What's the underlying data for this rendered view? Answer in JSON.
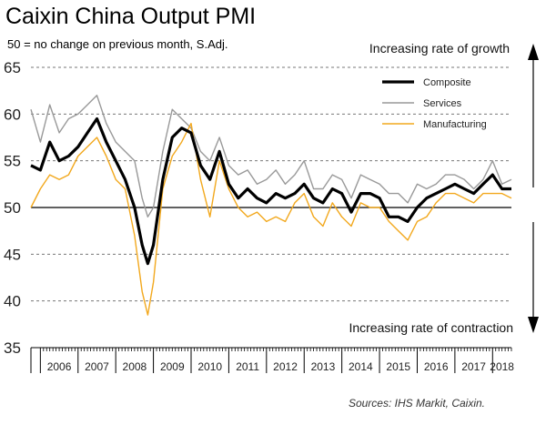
{
  "chart_data": {
    "type": "line",
    "title": "Caixin China Output PMI",
    "subtitle": "50 = no change on previous month, S.Adj.",
    "source": "Sources: IHS Markit, Caixin.",
    "annotation_top": "Increasing rate of growth",
    "annotation_bottom": "Increasing rate of contraction",
    "ylim": [
      35,
      65
    ],
    "yticks": [
      35,
      40,
      45,
      50,
      55,
      60,
      65
    ],
    "xlim": [
      2005.75,
      2018.5
    ],
    "xticks": [
      "2006",
      "2007",
      "2008",
      "2009",
      "2010",
      "2011",
      "2012",
      "2013",
      "2014",
      "2015",
      "2016",
      "2017",
      "2018"
    ],
    "reference_line": 50,
    "grid": "dashed-horizontal",
    "legend_position": "top-right",
    "series": [
      {
        "name": "Composite",
        "color": "#000000",
        "x": [
          2005.75,
          2006.0,
          2006.25,
          2006.5,
          2006.75,
          2007.0,
          2007.25,
          2007.5,
          2007.75,
          2008.0,
          2008.25,
          2008.5,
          2008.7,
          2008.85,
          2009.0,
          2009.25,
          2009.5,
          2009.75,
          2010.0,
          2010.25,
          2010.5,
          2010.75,
          2011.0,
          2011.25,
          2011.5,
          2011.75,
          2012.0,
          2012.25,
          2012.5,
          2012.75,
          2013.0,
          2013.25,
          2013.5,
          2013.75,
          2014.0,
          2014.25,
          2014.5,
          2014.75,
          2015.0,
          2015.25,
          2015.5,
          2015.75,
          2016.0,
          2016.25,
          2016.5,
          2016.75,
          2017.0,
          2017.25,
          2017.5,
          2017.75,
          2018.0,
          2018.25,
          2018.5
        ],
        "values": [
          54.5,
          54.0,
          57.0,
          55.0,
          55.5,
          56.5,
          58.0,
          59.5,
          57.0,
          55.0,
          53.0,
          50.0,
          46.0,
          44.0,
          46.0,
          53.0,
          57.5,
          58.5,
          58.0,
          54.5,
          53.0,
          56.0,
          52.5,
          51.0,
          52.0,
          51.0,
          50.5,
          51.5,
          51.0,
          51.5,
          52.5,
          51.0,
          50.5,
          52.0,
          51.5,
          49.5,
          51.5,
          51.5,
          51.0,
          49.0,
          49.0,
          48.5,
          50.0,
          51.0,
          51.5,
          52.0,
          52.5,
          52.0,
          51.5,
          52.5,
          53.5,
          52.0,
          52.0
        ]
      },
      {
        "name": "Services",
        "color": "#999999",
        "x": [
          2005.75,
          2006.0,
          2006.25,
          2006.5,
          2006.75,
          2007.0,
          2007.25,
          2007.5,
          2007.75,
          2008.0,
          2008.25,
          2008.5,
          2008.7,
          2008.85,
          2009.0,
          2009.25,
          2009.5,
          2009.75,
          2010.0,
          2010.25,
          2010.5,
          2010.75,
          2011.0,
          2011.25,
          2011.5,
          2011.75,
          2012.0,
          2012.25,
          2012.5,
          2012.75,
          2013.0,
          2013.25,
          2013.5,
          2013.75,
          2014.0,
          2014.25,
          2014.5,
          2014.75,
          2015.0,
          2015.25,
          2015.5,
          2015.75,
          2016.0,
          2016.25,
          2016.5,
          2016.75,
          2017.0,
          2017.25,
          2017.5,
          2017.75,
          2018.0,
          2018.25,
          2018.5
        ],
        "values": [
          60.5,
          57.0,
          61.0,
          58.0,
          59.5,
          60.0,
          61.0,
          62.0,
          59.0,
          57.0,
          56.0,
          55.0,
          51.0,
          49.0,
          50.0,
          56.0,
          60.5,
          59.5,
          58.5,
          56.0,
          55.0,
          57.5,
          54.5,
          53.5,
          54.0,
          52.5,
          53.0,
          54.0,
          52.5,
          53.5,
          55.0,
          52.0,
          52.0,
          53.5,
          53.0,
          51.0,
          53.5,
          53.0,
          52.5,
          51.5,
          51.5,
          50.5,
          52.5,
          52.0,
          52.5,
          53.5,
          53.5,
          53.0,
          52.0,
          53.0,
          55.0,
          52.5,
          53.0
        ]
      },
      {
        "name": "Manufacturing",
        "color": "#f2a81d",
        "x": [
          2005.75,
          2006.0,
          2006.25,
          2006.5,
          2006.75,
          2007.0,
          2007.25,
          2007.5,
          2007.75,
          2008.0,
          2008.25,
          2008.5,
          2008.7,
          2008.85,
          2009.0,
          2009.25,
          2009.5,
          2009.75,
          2010.0,
          2010.25,
          2010.5,
          2010.75,
          2011.0,
          2011.25,
          2011.5,
          2011.75,
          2012.0,
          2012.25,
          2012.5,
          2012.75,
          2013.0,
          2013.25,
          2013.5,
          2013.75,
          2014.0,
          2014.25,
          2014.5,
          2014.75,
          2015.0,
          2015.25,
          2015.5,
          2015.75,
          2016.0,
          2016.25,
          2016.5,
          2016.75,
          2017.0,
          2017.25,
          2017.5,
          2017.75,
          2018.0,
          2018.25,
          2018.5
        ],
        "values": [
          50.0,
          52.0,
          53.5,
          53.0,
          53.5,
          55.5,
          56.5,
          57.5,
          55.5,
          53.0,
          52.0,
          47.0,
          41.0,
          38.5,
          42.0,
          52.0,
          55.5,
          57.0,
          59.0,
          53.0,
          49.0,
          55.0,
          52.0,
          50.0,
          49.0,
          49.5,
          48.5,
          49.0,
          48.5,
          50.5,
          51.5,
          49.0,
          48.0,
          50.5,
          49.0,
          48.0,
          50.5,
          50.0,
          50.0,
          48.5,
          47.5,
          46.5,
          48.5,
          49.0,
          50.5,
          51.5,
          51.5,
          51.0,
          50.5,
          51.5,
          51.5,
          51.5,
          51.0
        ]
      }
    ]
  }
}
